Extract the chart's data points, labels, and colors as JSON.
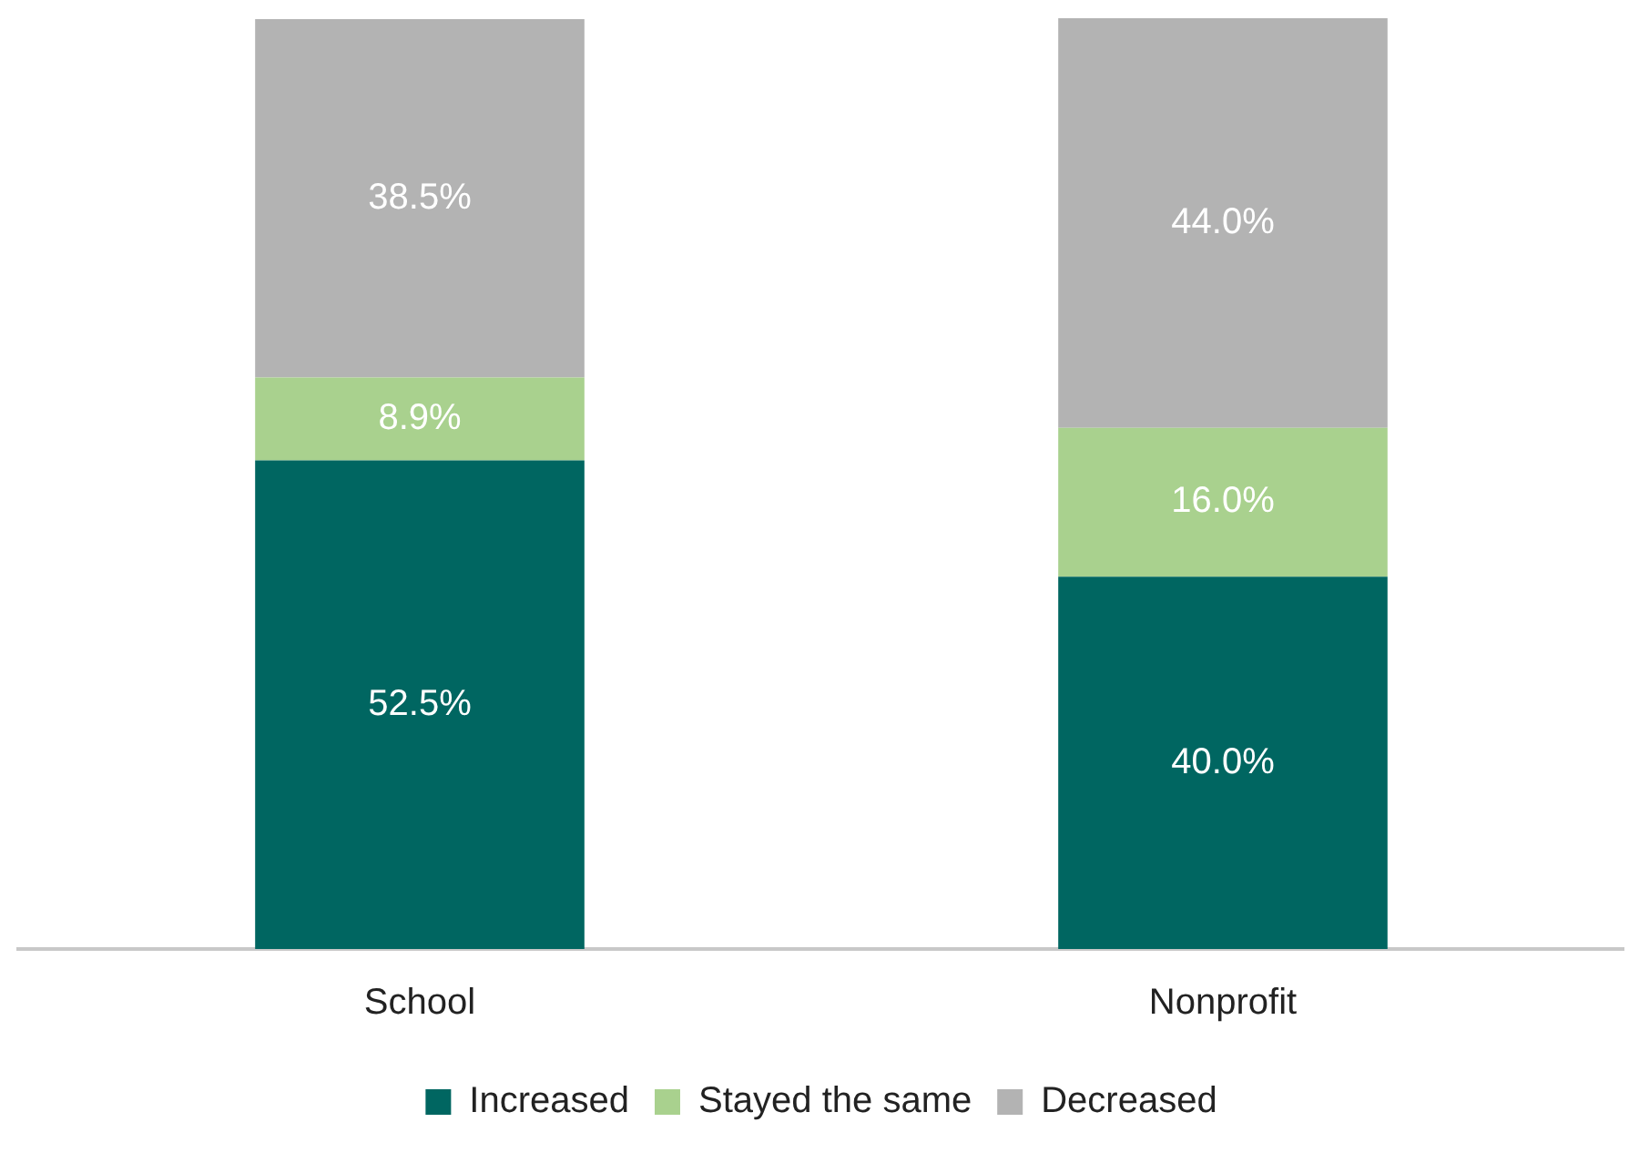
{
  "chart_data": {
    "type": "bar",
    "stacked": true,
    "categories": [
      "School",
      "Nonprofit"
    ],
    "series": [
      {
        "name": "Increased",
        "color": "#006661",
        "values": [
          52.5,
          40.0
        ],
        "value_labels": [
          "52.5%",
          "40.0%"
        ]
      },
      {
        "name": "Stayed the same",
        "color": "#a9d18e",
        "values": [
          8.9,
          16.0
        ],
        "value_labels": [
          "8.9%",
          "16.0%"
        ]
      },
      {
        "name": "Decreased",
        "color": "#b3b3b3",
        "values": [
          38.5,
          44.0
        ],
        "value_labels": [
          "38.5%",
          "44.0%"
        ]
      }
    ],
    "ylim": [
      0,
      100
    ],
    "tick_labels": "x",
    "grid": false,
    "legend": "bottom"
  }
}
